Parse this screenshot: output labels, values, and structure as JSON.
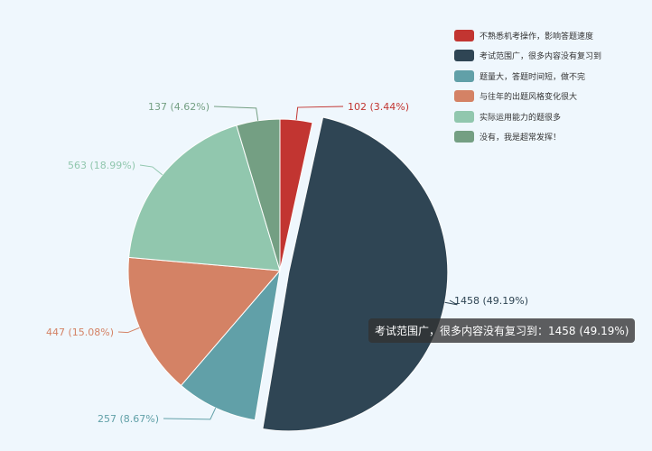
{
  "chart_data": {
    "type": "pie",
    "legend_position": "top-right",
    "series": [
      {
        "name": "不熟悉机考操作，影响答题速度",
        "value": 102,
        "label": "102 (3.44%)",
        "color": "#c23531"
      },
      {
        "name": "考试范围广，很多内容没有复习到",
        "value": 1458,
        "label": "1458 (49.19%)",
        "color": "#2f4554"
      },
      {
        "name": "题量大，答题时间短，做不完",
        "value": 257,
        "label": "257 (8.67%)",
        "color": "#61a0a8"
      },
      {
        "name": "与往年的出题风格变化很大",
        "value": 447,
        "label": "447 (15.08%)",
        "color": "#d48265"
      },
      {
        "name": "实际运用能力的题很多",
        "value": 563,
        "label": "563 (18.99%)",
        "color": "#91c7ae"
      },
      {
        "name": "没有，我是超常发挥！",
        "value": 137,
        "label": "137 (4.62%)",
        "color": "#749f83"
      }
    ],
    "tooltip": "考试范围广，很多内容没有复习到：1458 (49.19%)"
  }
}
